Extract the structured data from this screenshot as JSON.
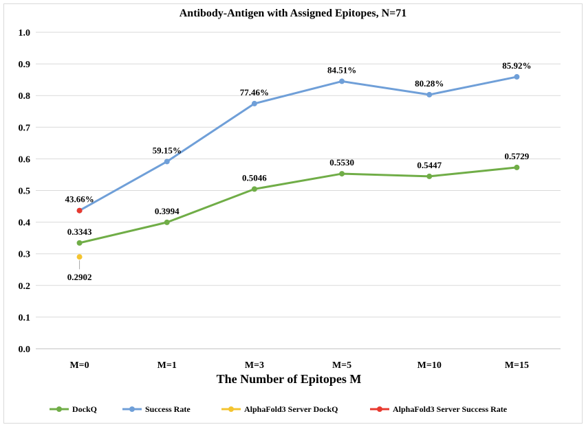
{
  "chart_data": {
    "type": "line",
    "title": "Antibody-Antigen with Assigned Epitopes, N=71",
    "xlabel": "The Number of Epitopes M",
    "ylabel": "",
    "categories": [
      "M=0",
      "M=1",
      "M=3",
      "M=5",
      "M=10",
      "M=15"
    ],
    "ylim": [
      0,
      1.0
    ],
    "yticks": [
      "0.0",
      "0.1",
      "0.2",
      "0.3",
      "0.4",
      "0.5",
      "0.6",
      "0.7",
      "0.8",
      "0.9",
      "1.0"
    ],
    "grid": true,
    "legend_position": "bottom",
    "series": [
      {
        "name": "DockQ",
        "color": "#70ad47",
        "values": [
          0.3343,
          0.3994,
          0.5046,
          0.553,
          0.5447,
          0.5729
        ],
        "labels": [
          "0.3343",
          "0.3994",
          "0.5046",
          "0.5530",
          "0.5447",
          "0.5729"
        ]
      },
      {
        "name": "Success Rate",
        "color": "#6f9fd8",
        "values": [
          0.4366,
          0.5915,
          0.7746,
          0.8451,
          0.8028,
          0.8592
        ],
        "labels": [
          "43.66%",
          "59.15%",
          "77.46%",
          "84.51%",
          "80.28%",
          "85.92%"
        ]
      },
      {
        "name": "AlphaFold3 Server DockQ",
        "color": "#f4c430",
        "values": [
          0.2902,
          null,
          null,
          null,
          null,
          null
        ],
        "labels": [
          "0.2902",
          null,
          null,
          null,
          null,
          null
        ]
      },
      {
        "name": "AlphaFold3 Server Success Rate",
        "color": "#e83a2f",
        "values": [
          0.4366,
          null,
          null,
          null,
          null,
          null
        ],
        "labels": [
          null,
          null,
          null,
          null,
          null,
          null
        ]
      }
    ]
  }
}
